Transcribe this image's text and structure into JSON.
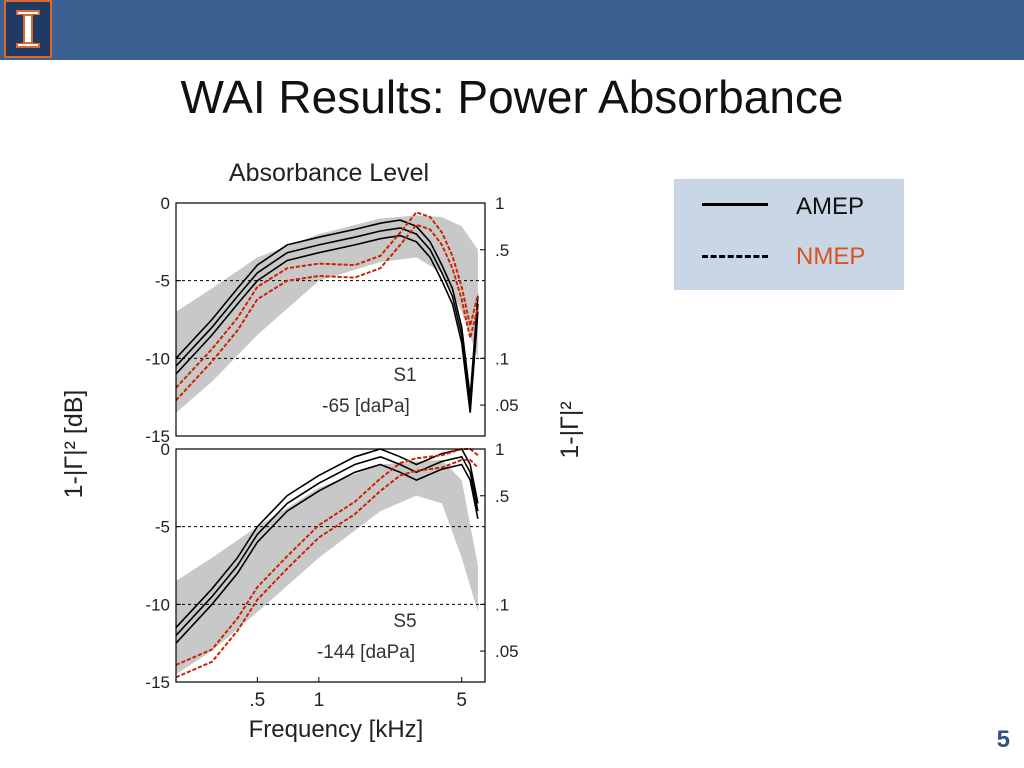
{
  "header": {
    "title": "WAI Results: Power Absorbance",
    "logo_icon": "university-logo-icon",
    "bar_color": "#3b6193"
  },
  "legend": {
    "amep_label": "AMEP",
    "nmep_label": "NMEP",
    "nmep_color": "#d9531e"
  },
  "page_number": "5",
  "chart_data": {
    "type": "line",
    "title": "Absorbance Level",
    "xlabel": "Frequency [kHz]",
    "ylabel_left": "1-|Γ|² [dB]",
    "ylabel_right": "1-|Γ|²",
    "x_scale": "log",
    "xlim": [
      0.2,
      6.5
    ],
    "x_ticks": [
      ".5",
      "1",
      "5"
    ],
    "colors": {
      "AMEP": "#000000",
      "NMEP": "#cc2200",
      "range": "#c8c8c8"
    },
    "panels": [
      {
        "name": "S1",
        "pressure": "-65 [daPa]",
        "ylim": [
          -15,
          0
        ],
        "left_ticks": [
          "0",
          "-5",
          "-10",
          "-15"
        ],
        "right_ticks": [
          "1",
          ".5",
          ".1",
          ".05"
        ],
        "series": [
          {
            "name": "AMEP",
            "x": [
              0.2,
              0.3,
              0.4,
              0.5,
              0.7,
              1.0,
              1.5,
              2.0,
              2.5,
              3.0,
              3.5,
              4.0,
              4.5,
              5.0,
              5.5,
              6.0
            ],
            "y": [
              -10.5,
              -8.0,
              -6.0,
              -4.5,
              -3.2,
              -2.7,
              -2.2,
              -1.8,
              -1.6,
              -2.0,
              -3.0,
              -4.5,
              -6.0,
              -8.5,
              -13.0,
              -6.5
            ]
          },
          {
            "name": "NMEP",
            "x": [
              0.2,
              0.3,
              0.4,
              0.5,
              0.7,
              1.0,
              1.5,
              2.0,
              2.5,
              3.0,
              3.5,
              4.0,
              4.5,
              5.0,
              5.5,
              6.0
            ],
            "y": [
              -12.5,
              -10.0,
              -8.0,
              -6.0,
              -4.8,
              -4.5,
              -4.6,
              -4.0,
              -2.5,
              -1.2,
              -1.5,
              -2.5,
              -4.0,
              -6.0,
              -8.5,
              -6.5
            ]
          }
        ],
        "range_band": {
          "x": [
            0.2,
            0.3,
            0.5,
            1.0,
            2.0,
            3.0,
            4.0,
            5.0,
            6.0
          ],
          "upper": [
            -7.0,
            -5.5,
            -3.5,
            -2.0,
            -1.0,
            -0.8,
            -0.9,
            -1.5,
            -3.0
          ],
          "lower": [
            -13.5,
            -11.5,
            -8.5,
            -5.0,
            -3.8,
            -3.5,
            -4.5,
            -7.0,
            -10.0
          ]
        }
      },
      {
        "name": "S5",
        "pressure": "-144 [daPa]",
        "ylim": [
          -15,
          0
        ],
        "left_ticks": [
          "0",
          "-5",
          "-10",
          "-15"
        ],
        "right_ticks": [
          "1",
          ".5",
          ".1",
          ".05"
        ],
        "series": [
          {
            "name": "AMEP",
            "x": [
              0.2,
              0.3,
              0.4,
              0.5,
              0.7,
              1.0,
              1.5,
              2.0,
              2.5,
              3.0,
              4.0,
              5.0,
              5.5,
              6.0
            ],
            "y": [
              -12.0,
              -9.5,
              -7.5,
              -5.5,
              -3.5,
              -2.2,
              -1.0,
              -0.5,
              -1.0,
              -1.5,
              -0.8,
              -0.5,
              -1.5,
              -4.0
            ]
          },
          {
            "name": "NMEP",
            "x": [
              0.2,
              0.3,
              0.4,
              0.5,
              0.7,
              1.0,
              1.5,
              2.0,
              2.5,
              3.0,
              4.0,
              5.0,
              5.5,
              6.0
            ],
            "y": [
              -14.5,
              -13.5,
              -11.5,
              -9.5,
              -7.5,
              -5.5,
              -4.0,
              -2.5,
              -1.5,
              -1.2,
              -1.0,
              -0.5,
              -0.5,
              -1.0
            ]
          }
        ],
        "range_band": {
          "x": [
            0.2,
            0.3,
            0.5,
            1.0,
            2.0,
            3.0,
            4.0,
            5.0,
            6.0
          ],
          "upper": [
            -8.5,
            -7.0,
            -5.0,
            -2.5,
            -1.0,
            -0.8,
            -0.7,
            -2.0,
            -7.5
          ],
          "lower": [
            -14.5,
            -13.0,
            -10.5,
            -7.0,
            -4.0,
            -3.0,
            -3.5,
            -7.0,
            -10.5
          ]
        }
      }
    ]
  }
}
